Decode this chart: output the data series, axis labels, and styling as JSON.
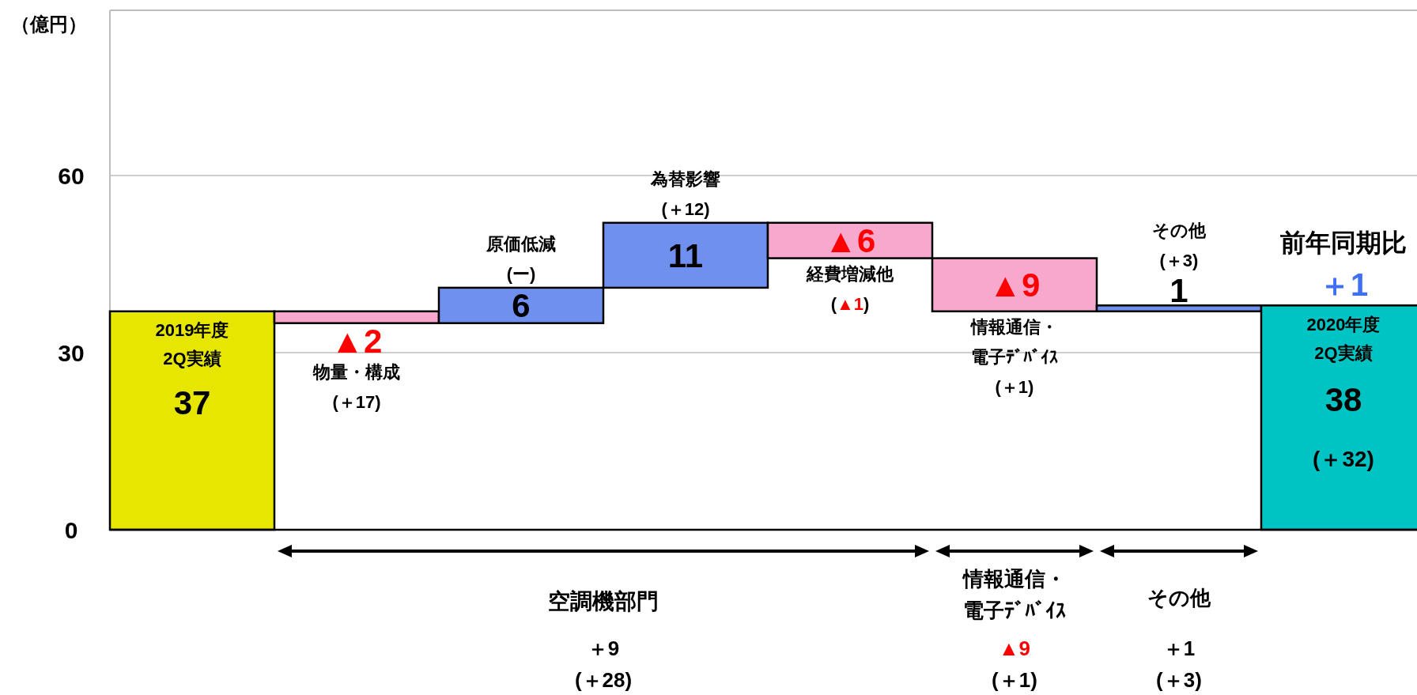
{
  "chart_data": {
    "type": "bar",
    "ylabel": "（億円）",
    "categories": [
      "2019年度2Q実績",
      "物量・構成\n(＋17)",
      "原価低減\n(ー)",
      "為替影響\n(＋12)",
      "経費増減他\n(▲1)",
      "情報通信・電子ﾃﾞﾊﾞｲｽ\n(＋1)",
      "その他\n(＋3)",
      "2020年度2Q実績"
    ],
    "values": [
      37,
      -2,
      6,
      11,
      -6,
      -9,
      1,
      38
    ],
    "base": [
      0,
      37,
      35,
      41,
      52,
      46,
      37,
      0
    ],
    "value_labels": [
      "37",
      "▲2",
      "6",
      "11",
      "▲6",
      "▲9",
      "1",
      "38"
    ],
    "colors": [
      "#e6e600",
      "#f7a8cc",
      "#7090f0",
      "#7090f0",
      "#f7a8cc",
      "#f7a8cc",
      "#7090f0",
      "#00c4c4"
    ],
    "ylim": [
      0,
      88
    ],
    "yticks": [
      0,
      30,
      60
    ],
    "grid": "y",
    "annotations": [
      "(＋32)",
      "前年同期比",
      "＋1",
      "空調機部門",
      "＋9\n(＋28)",
      "情報通信・電子ﾃﾞﾊﾞｲｽ",
      "▲9\n(＋1)",
      "その他",
      "＋1\n(＋3)"
    ]
  }
}
